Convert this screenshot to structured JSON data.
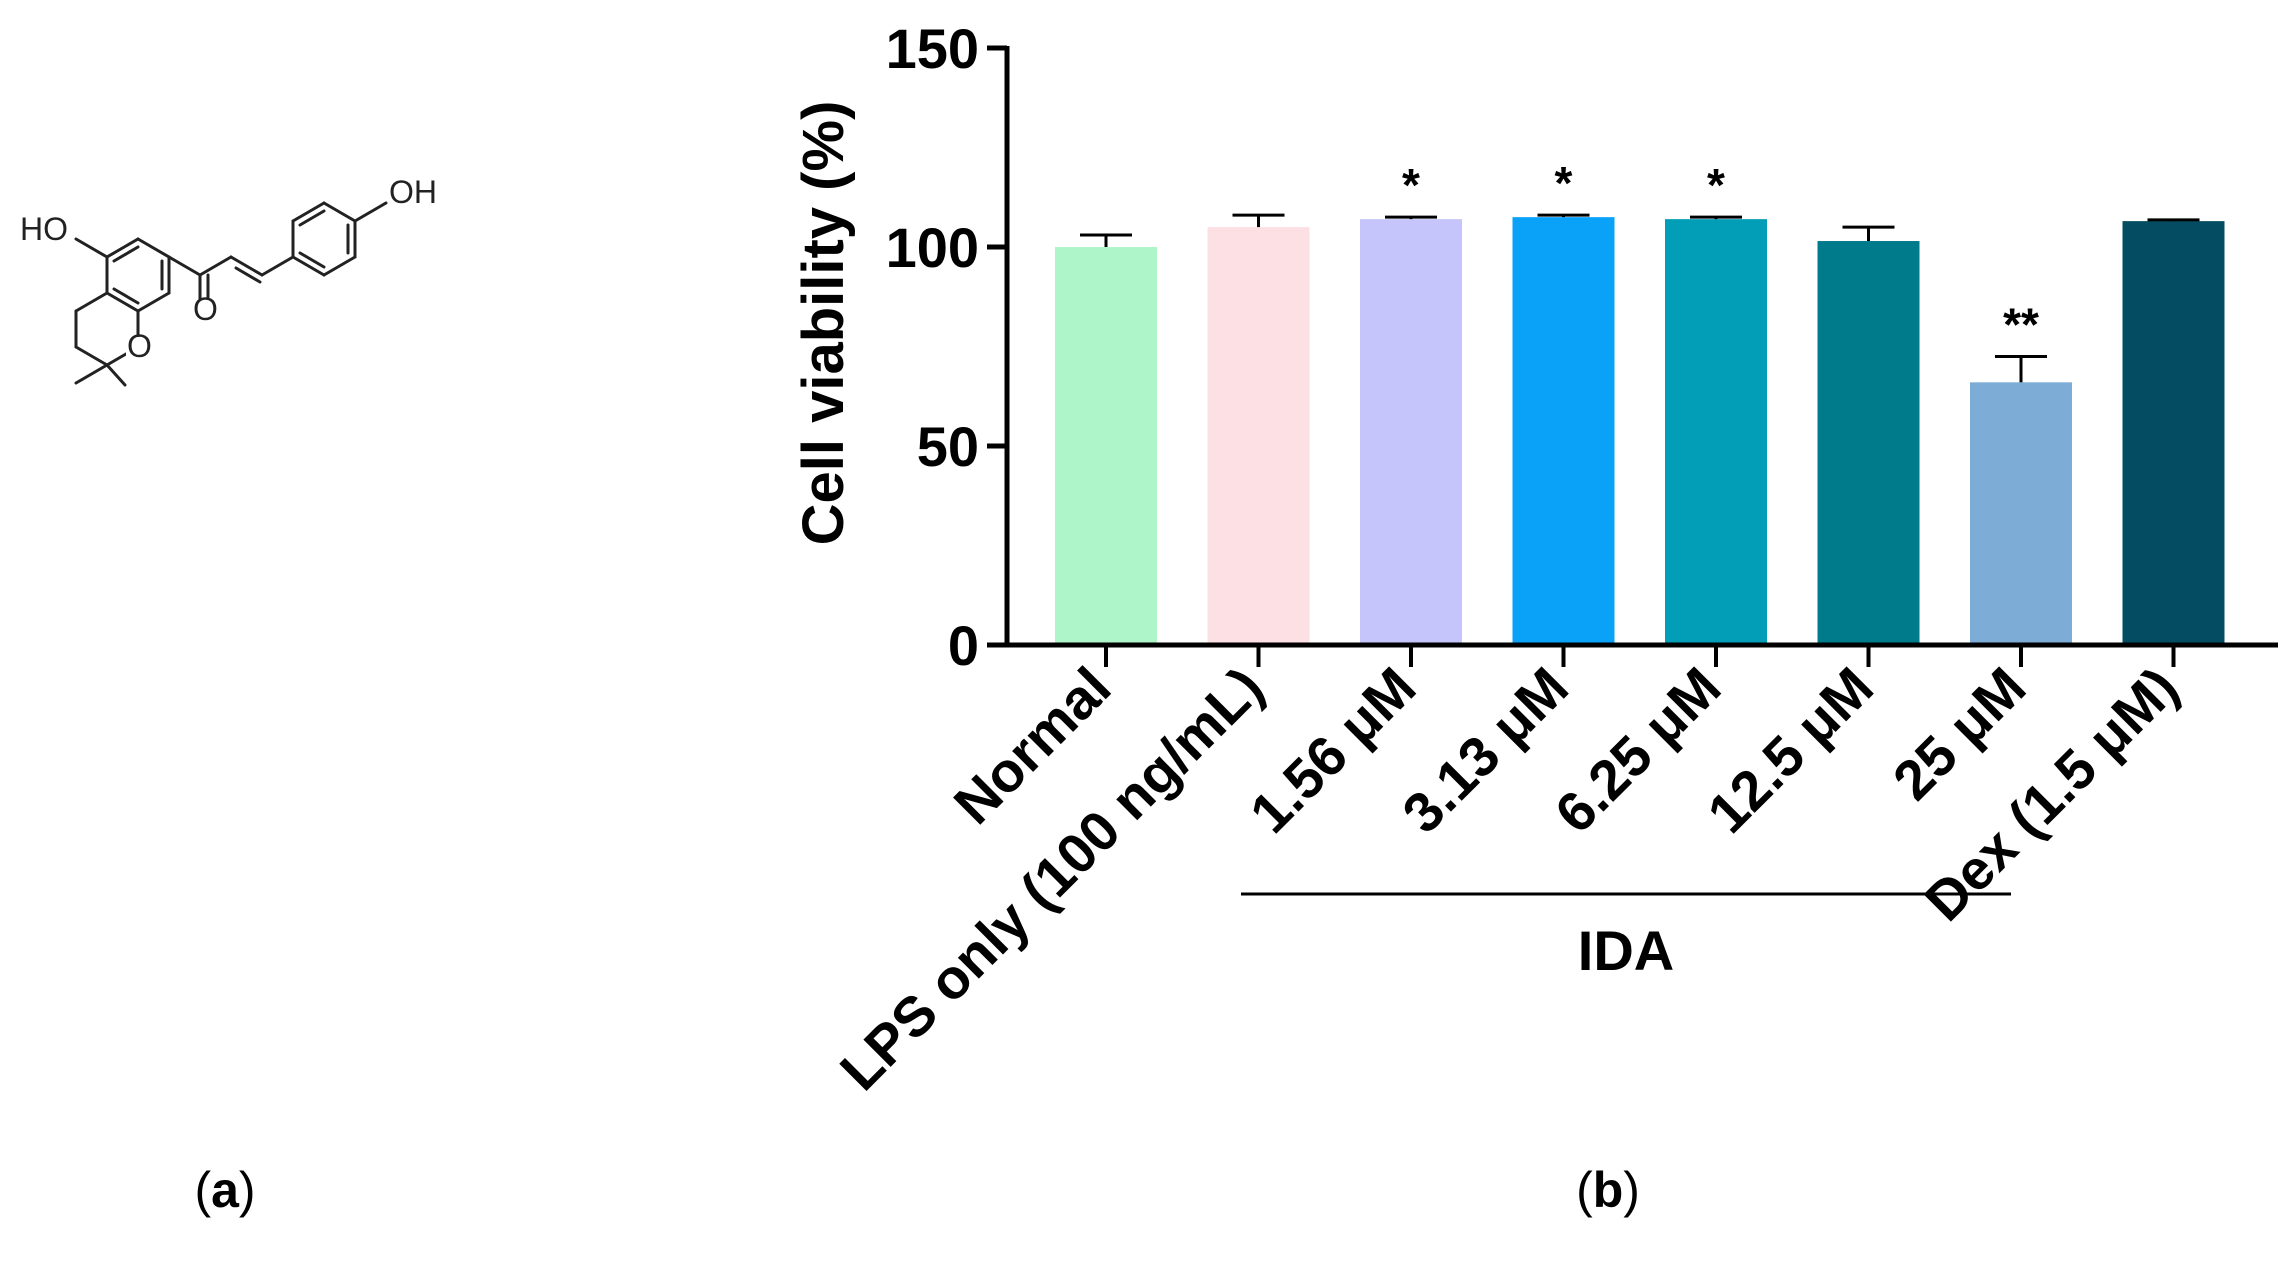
{
  "panel_a": {
    "label_open": "(",
    "label_letter": "a",
    "label_close": ")",
    "molecule": {
      "atom_ho_left": "HO",
      "atom_oh_right": "OH",
      "atom_o_ring": "O",
      "atom_o_carbonyl": "O"
    }
  },
  "panel_b": {
    "label_open": "(",
    "label_letter": "b",
    "label_close": ")"
  },
  "chart_data": {
    "type": "bar",
    "title": "",
    "xlabel": "",
    "ylabel": "Cell viability (%)",
    "ylim": [
      0,
      150
    ],
    "yticks": [
      "0",
      "50",
      "100",
      "150"
    ],
    "grid": false,
    "categories": [
      "Normal",
      "LPS only (100 ng/mL)",
      "1.56 μM",
      "3.13 μM",
      "6.25 μM",
      "12.5 μM",
      "25 μM",
      "Dex (1.5 μM)"
    ],
    "values": [
      100,
      105,
      107,
      107.5,
      107,
      101.5,
      66,
      106.5
    ],
    "errors": [
      3,
      3,
      0.5,
      0.5,
      0.5,
      3.5,
      6.5,
      0.3
    ],
    "colors": [
      "#aef5c9",
      "#fde0e3",
      "#c5c5fb",
      "#0aa1f8",
      "#029db6",
      "#007b8c",
      "#7dadd6",
      "#034c62"
    ],
    "significance": [
      "",
      "",
      "*",
      "*",
      "*",
      "",
      "**",
      ""
    ],
    "group": {
      "label": "IDA",
      "from_category": "1.56 μM",
      "to_category": "25 μM"
    }
  }
}
